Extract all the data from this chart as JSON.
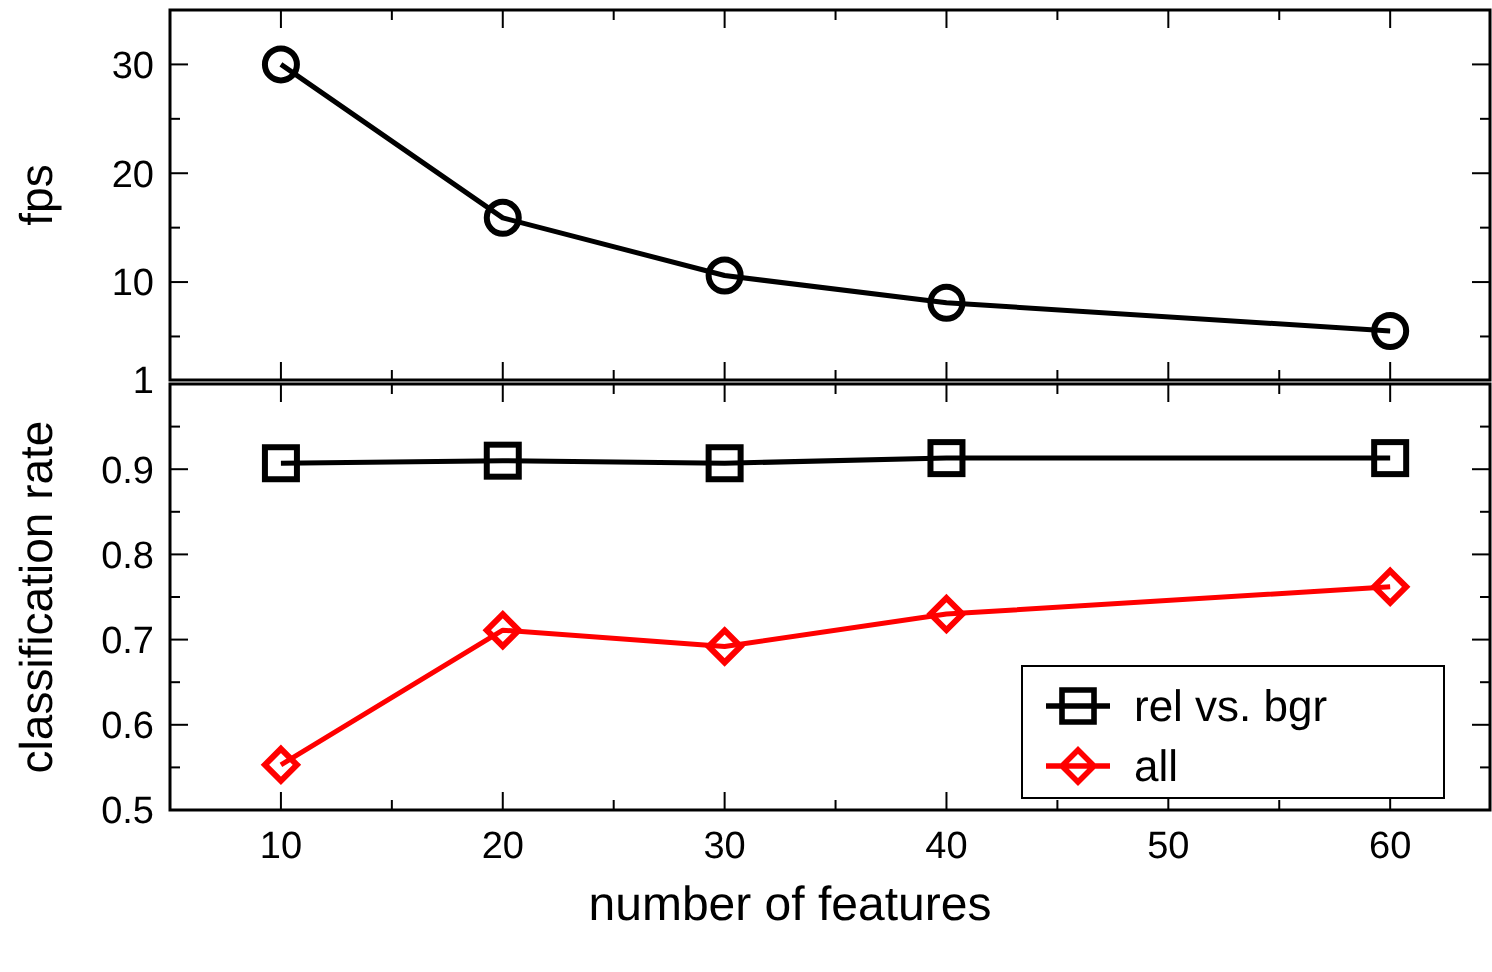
{
  "chart_data": [
    {
      "type": "line",
      "ylabel": "fps",
      "x": [
        10,
        20,
        30,
        40,
        60
      ],
      "xlim": [
        5,
        64.5
      ],
      "xticks": [
        10,
        {
          "value": 15,
          "label": null
        },
        20,
        {
          "value": 25,
          "label": null
        },
        30,
        {
          "value": 35,
          "label": null
        },
        40,
        {
          "value": 45,
          "label": null
        },
        50,
        {
          "value": 55,
          "label": null
        },
        60
      ],
      "ylim": [
        1,
        35
      ],
      "yticks": [
        1,
        {
          "value": 5,
          "label": null
        },
        10,
        {
          "value": 15,
          "label": null
        },
        20,
        {
          "value": 25,
          "label": null
        },
        30
      ],
      "tick_labels": "y",
      "grid": false,
      "legend": false,
      "series": [
        {
          "color": "#000000",
          "values": [
            30,
            15.9,
            10.6,
            8.1,
            5.5
          ],
          "marker": "circle"
        }
      ]
    },
    {
      "type": "line",
      "xlabel": "number of features",
      "ylabel": "classification rate",
      "x": [
        10,
        20,
        30,
        40,
        60
      ],
      "xlim": [
        5,
        64.5
      ],
      "xticks": [
        10,
        {
          "value": 15,
          "label": null
        },
        20,
        {
          "value": 25,
          "label": null
        },
        30,
        {
          "value": 35,
          "label": null
        },
        40,
        {
          "value": 45,
          "label": null
        },
        50,
        {
          "value": 55,
          "label": null
        },
        60
      ],
      "ylim": [
        0.5,
        1
      ],
      "yticks": [
        0.5,
        {
          "value": 0.55,
          "label": null
        },
        0.6,
        {
          "value": 0.65,
          "label": null
        },
        0.7,
        {
          "value": 0.75,
          "label": null
        },
        0.8,
        {
          "value": 0.85,
          "label": null
        },
        0.9,
        {
          "value": 0.95,
          "label": null
        },
        {
          "value": 1,
          "label": null
        }
      ],
      "grid": false,
      "legend": "bottom right",
      "series": [
        {
          "name": "rel vs. bgr",
          "color": "#000000",
          "values": [
            0.907,
            0.91,
            0.907,
            0.913,
            0.913
          ],
          "marker": "square"
        },
        {
          "name": "all",
          "color": "#ff0000",
          "values": [
            0.553,
            0.711,
            0.692,
            0.73,
            0.762
          ],
          "marker": "diamond"
        }
      ]
    }
  ]
}
